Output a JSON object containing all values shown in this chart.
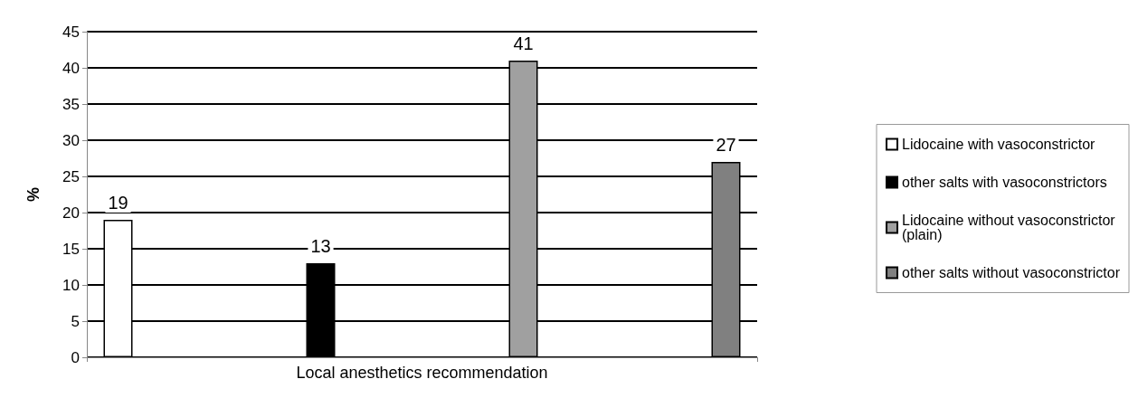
{
  "chart_data": {
    "type": "bar",
    "categories": [
      "Local anesthetics recommendation"
    ],
    "ylabel": "%",
    "series": [
      {
        "name": "Lidocaine with vasoconstrictor",
        "color": "#ffffff",
        "values": [
          19
        ]
      },
      {
        "name": "other salts with vasoconstrictors",
        "color": "#000000",
        "values": [
          13
        ]
      },
      {
        "name": "Lidocaine without vasoconstrictor (plain)",
        "color": "#a0a0a0",
        "values": [
          41
        ]
      },
      {
        "name": "other salts without vasoconstrictor",
        "color": "#808080",
        "values": [
          27
        ]
      }
    ],
    "ylim": [
      0,
      45
    ],
    "yticks": [
      0,
      5,
      10,
      15,
      20,
      25,
      30,
      35,
      40,
      45
    ],
    "grid": "y",
    "legend": "right",
    "data_labels": true
  }
}
